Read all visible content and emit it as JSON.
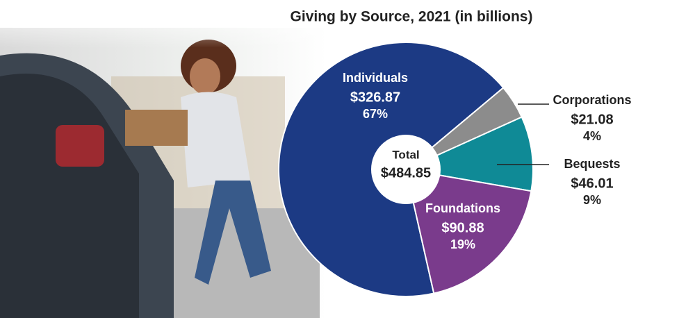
{
  "chart_data": {
    "type": "pie",
    "title": "Giving by Source, 2021 (in billions)",
    "categories": [
      "Individuals",
      "Corporations",
      "Bequests",
      "Foundations"
    ],
    "values": [
      326.87,
      21.08,
      46.01,
      90.88
    ],
    "value_labels": [
      "$326.87",
      "$21.08",
      "$46.01",
      "$90.88"
    ],
    "percentages": [
      67,
      4,
      9,
      19
    ],
    "percentage_labels": [
      "67%",
      "4%",
      "9%",
      "19%"
    ],
    "colors": [
      "#1c3a84",
      "#8c8c8c",
      "#0f8a96",
      "#7a3b8c"
    ],
    "total_label": "Total",
    "total": 484.85,
    "total_value_label": "$484.85"
  }
}
